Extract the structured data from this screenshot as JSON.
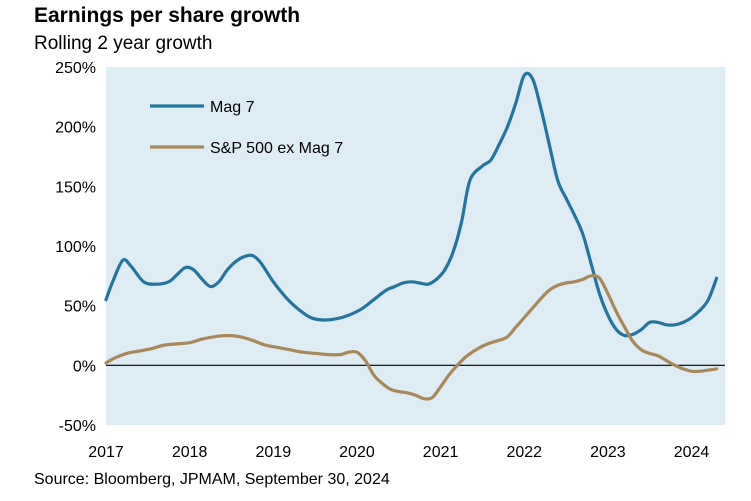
{
  "title": "Earnings per share growth",
  "subtitle": "Rolling 2 year growth",
  "source": "Source: Bloomberg, JPMAM, September 30, 2024",
  "colors": {
    "plot_bg": "#deecf3",
    "mag7": "#23759f",
    "sp500": "#a9885a",
    "zero_line": "#000000"
  },
  "chart_data": {
    "type": "line",
    "ylim": [
      -50,
      250
    ],
    "xlim": [
      2017.0,
      2024.4
    ],
    "yticks": [
      -50,
      0,
      50,
      100,
      150,
      200,
      250
    ],
    "ytick_labels": [
      "-50%",
      "0%",
      "50%",
      "100%",
      "150%",
      "200%",
      "250%"
    ],
    "xticks": [
      2017,
      2018,
      2019,
      2020,
      2021,
      2022,
      2023,
      2024
    ],
    "xtick_labels": [
      "2017",
      "2018",
      "2019",
      "2020",
      "2021",
      "2022",
      "2023",
      "2024"
    ],
    "legend_position": "top-left",
    "series": [
      {
        "name": "Mag 7",
        "color": "#23759f",
        "x": [
          2017.0,
          2017.08,
          2017.2,
          2017.3,
          2017.45,
          2017.6,
          2017.75,
          2017.85,
          2017.95,
          2018.05,
          2018.15,
          2018.25,
          2018.35,
          2018.45,
          2018.55,
          2018.65,
          2018.75,
          2018.85,
          2019.0,
          2019.15,
          2019.3,
          2019.45,
          2019.6,
          2019.75,
          2019.9,
          2020.05,
          2020.2,
          2020.35,
          2020.45,
          2020.55,
          2020.65,
          2020.75,
          2020.85,
          2020.95,
          2021.05,
          2021.15,
          2021.25,
          2021.35,
          2021.5,
          2021.6,
          2021.7,
          2021.8,
          2021.9,
          2022.0,
          2022.1,
          2022.2,
          2022.3,
          2022.4,
          2022.5,
          2022.6,
          2022.7,
          2022.8,
          2022.9,
          2023.0,
          2023.1,
          2023.2,
          2023.3,
          2023.4,
          2023.5,
          2023.6,
          2023.7,
          2023.8,
          2023.9,
          2024.0,
          2024.1,
          2024.2,
          2024.3
        ],
        "values": [
          55,
          70,
          88,
          83,
          70,
          68,
          70,
          76,
          82,
          80,
          72,
          66,
          70,
          80,
          87,
          91,
          92,
          86,
          70,
          57,
          47,
          40,
          38,
          39,
          42,
          47,
          55,
          63,
          66,
          69,
          70,
          69,
          68,
          72,
          80,
          95,
          120,
          155,
          167,
          172,
          185,
          200,
          220,
          243,
          240,
          215,
          185,
          155,
          140,
          126,
          110,
          85,
          60,
          42,
          30,
          25,
          26,
          30,
          36,
          36,
          34,
          34,
          36,
          40,
          46,
          55,
          73
        ]
      },
      {
        "name": "S&P 500 ex Mag 7",
        "color": "#a9885a",
        "x": [
          2017.0,
          2017.1,
          2017.25,
          2017.4,
          2017.55,
          2017.7,
          2017.85,
          2018.0,
          2018.15,
          2018.3,
          2018.45,
          2018.6,
          2018.75,
          2018.9,
          2019.05,
          2019.2,
          2019.35,
          2019.5,
          2019.65,
          2019.8,
          2019.9,
          2020.0,
          2020.1,
          2020.2,
          2020.3,
          2020.4,
          2020.5,
          2020.6,
          2020.7,
          2020.8,
          2020.9,
          2021.0,
          2021.1,
          2021.2,
          2021.3,
          2021.4,
          2021.5,
          2021.6,
          2021.7,
          2021.8,
          2021.9,
          2022.0,
          2022.1,
          2022.2,
          2022.3,
          2022.4,
          2022.5,
          2022.6,
          2022.7,
          2022.8,
          2022.9,
          2023.0,
          2023.1,
          2023.2,
          2023.3,
          2023.4,
          2023.5,
          2023.6,
          2023.7,
          2023.8,
          2023.9,
          2024.0,
          2024.1,
          2024.2,
          2024.3
        ],
        "values": [
          2,
          6,
          10,
          12,
          14,
          17,
          18,
          19,
          22,
          24,
          25,
          24,
          21,
          17,
          15,
          13,
          11,
          10,
          9,
          9,
          11,
          11,
          4,
          -8,
          -15,
          -20,
          -22,
          -23,
          -25,
          -28,
          -27,
          -18,
          -8,
          0,
          7,
          12,
          16,
          19,
          21,
          24,
          32,
          40,
          48,
          56,
          63,
          67,
          69,
          70,
          72,
          75,
          73,
          60,
          45,
          32,
          20,
          13,
          10,
          8,
          4,
          0,
          -3,
          -5,
          -5,
          -4,
          -3
        ]
      }
    ]
  }
}
